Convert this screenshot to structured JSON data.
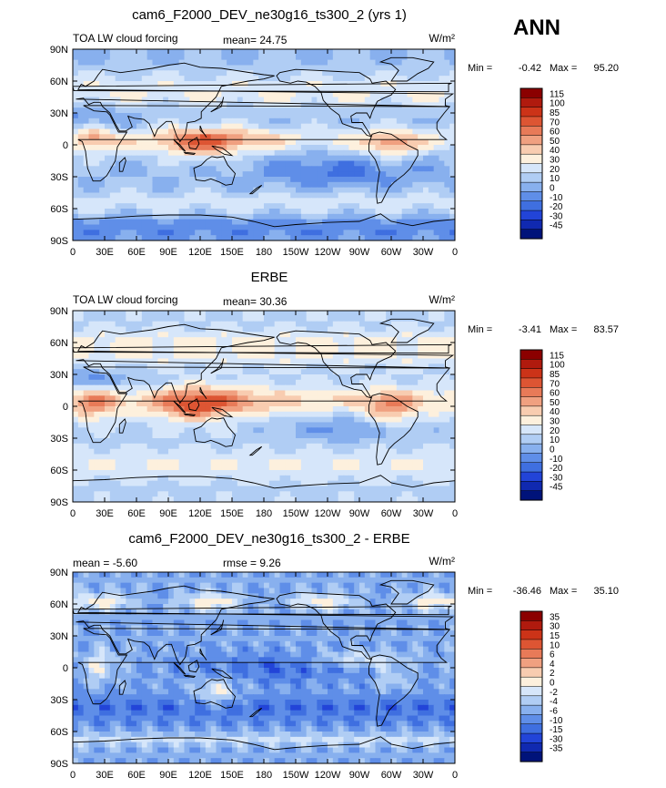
{
  "season": "ANN",
  "chart_data": [
    {
      "type": "heatmap",
      "title": "cam6_F2000_DEV_ne30g16_ts300_2 (yrs 1)",
      "left_label": "TOA LW cloud forcing",
      "stats_text": "mean=  24.75",
      "units": "W/m²",
      "minmax": {
        "min_label": "Min =",
        "min": "-0.42",
        "max_label": "Max =",
        "max": "95.20"
      },
      "x_ticks": [
        "0",
        "30E",
        "60E",
        "90E",
        "120E",
        "150E",
        "180",
        "150W",
        "120W",
        "90W",
        "60W",
        "30W",
        "0"
      ],
      "y_ticks": [
        "90N",
        "60N",
        "30N",
        "0",
        "30S",
        "60S",
        "90S"
      ],
      "colorbar": {
        "levels": [
          "115",
          "100",
          "85",
          "70",
          "60",
          "50",
          "40",
          "30",
          "20",
          "10",
          "0",
          "-10",
          "-20",
          "-30",
          "-45"
        ],
        "colors": [
          "#8b0000",
          "#b01a0e",
          "#cc3318",
          "#dd5533",
          "#e87a58",
          "#f0a080",
          "#f8ccb0",
          "#fdf0dd",
          "#d6e6fa",
          "#b0cdf4",
          "#88b0ee",
          "#5f8ee8",
          "#3f6fe0",
          "#2244d8",
          "#1029b0",
          "#00137a"
        ]
      }
    },
    {
      "type": "heatmap",
      "title": "ERBE",
      "left_label": "TOA LW cloud forcing",
      "stats_text": "mean=  30.36",
      "units": "W/m²",
      "minmax": {
        "min_label": "Min =",
        "min": "-3.41",
        "max_label": "Max =",
        "max": "83.57"
      },
      "x_ticks": [
        "0",
        "30E",
        "60E",
        "90E",
        "120E",
        "150E",
        "180",
        "150W",
        "120W",
        "90W",
        "60W",
        "30W",
        "0"
      ],
      "y_ticks": [
        "90N",
        "60N",
        "30N",
        "0",
        "30S",
        "60S",
        "90S"
      ],
      "colorbar": {
        "levels": [
          "115",
          "100",
          "85",
          "70",
          "60",
          "50",
          "40",
          "30",
          "20",
          "10",
          "0",
          "-10",
          "-20",
          "-30",
          "-45"
        ],
        "colors": [
          "#8b0000",
          "#b01a0e",
          "#cc3318",
          "#dd5533",
          "#e87a58",
          "#f0a080",
          "#f8ccb0",
          "#fdf0dd",
          "#d6e6fa",
          "#b0cdf4",
          "#88b0ee",
          "#5f8ee8",
          "#3f6fe0",
          "#2244d8",
          "#1029b0",
          "#00137a"
        ]
      }
    },
    {
      "type": "heatmap",
      "title": "cam6_F2000_DEV_ne30g16_ts300_2 - ERBE",
      "mean_text": "mean =   -5.60",
      "rmse_text": "rmse =    9.26",
      "units": "W/m²",
      "minmax": {
        "min_label": "Min =",
        "min": "-36.46",
        "max_label": "Max =",
        "max": "35.10"
      },
      "x_ticks": [
        "0",
        "30E",
        "60E",
        "90E",
        "120E",
        "150E",
        "180",
        "150W",
        "120W",
        "90W",
        "60W",
        "30W",
        "0"
      ],
      "y_ticks": [
        "90N",
        "60N",
        "30N",
        "0",
        "30S",
        "60S",
        "90S"
      ],
      "colorbar": {
        "levels": [
          "35",
          "30",
          "15",
          "10",
          "6",
          "4",
          "2",
          "0",
          "-2",
          "-4",
          "-6",
          "-10",
          "-15",
          "-30",
          "-35"
        ],
        "colors": [
          "#8b0000",
          "#b01a0e",
          "#cc3318",
          "#dd5533",
          "#e87a58",
          "#f0a080",
          "#f8ccb0",
          "#fdf0dd",
          "#d6e6fa",
          "#b0cdf4",
          "#88b0ee",
          "#5f8ee8",
          "#3f6fe0",
          "#2244d8",
          "#1029b0",
          "#00137a"
        ]
      }
    }
  ]
}
